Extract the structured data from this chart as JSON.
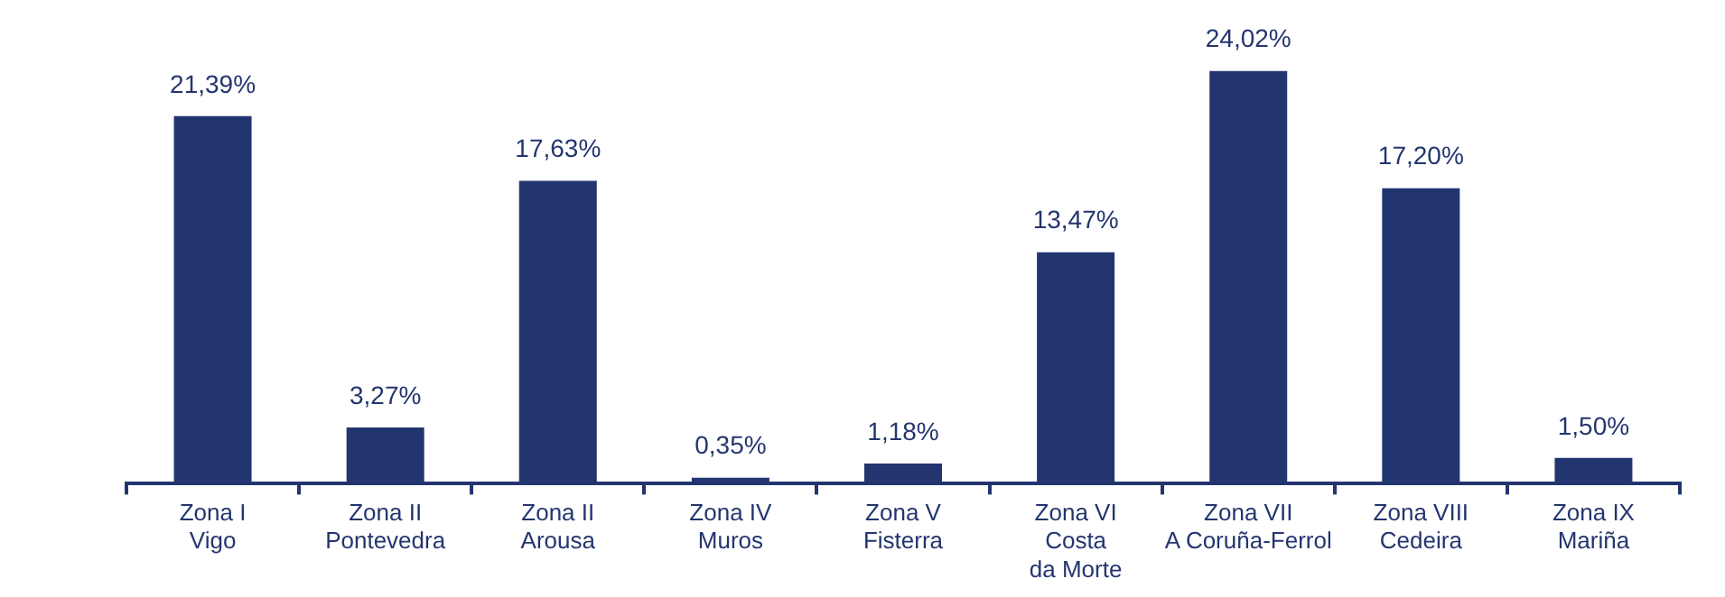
{
  "chart_data": {
    "type": "bar",
    "categories": [
      "Zona I\nVigo",
      "Zona II\nPontevedra",
      "Zona II\nArousa",
      "Zona IV\nMuros",
      "Zona V\nFisterra",
      "Zona VI\nCosta\nda Morte",
      "Zona VII\nA Coruña-Ferrol",
      "Zona VIII\nCedeira",
      "Zona IX\nMariña"
    ],
    "values": [
      21.39,
      3.27,
      17.63,
      0.35,
      1.18,
      13.47,
      24.02,
      17.2,
      1.5
    ],
    "value_labels": [
      "21,39%",
      "3,27%",
      "17,63%",
      "0,35%",
      "1,18%",
      "13,47%",
      "24,02%",
      "17,20%",
      "1,50%"
    ],
    "color": "#23356f",
    "grid": false,
    "legend": false,
    "tick_labels": "x"
  }
}
